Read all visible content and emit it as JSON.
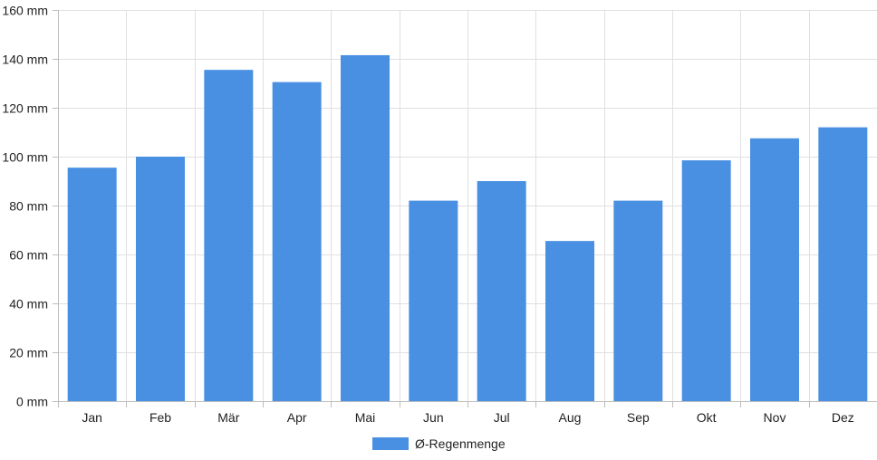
{
  "colors": {
    "bar": "#4a90e2",
    "grid": "#e0e0e0",
    "axis": "#bdbdbd",
    "text": "#222222"
  },
  "chart_data": {
    "type": "bar",
    "categories": [
      "Jan",
      "Feb",
      "Mär",
      "Apr",
      "Mai",
      "Jun",
      "Jul",
      "Aug",
      "Sep",
      "Okt",
      "Nov",
      "Dez"
    ],
    "series": [
      {
        "name": "Ø-Regenmenge",
        "values": [
          95.5,
          100,
          135.5,
          130.5,
          141.5,
          82,
          90,
          65.5,
          82,
          98.5,
          107.5,
          112
        ]
      }
    ],
    "ylim": [
      0,
      160
    ],
    "yticks": [
      0,
      20,
      40,
      60,
      80,
      100,
      120,
      140,
      160
    ],
    "y_unit": "mm",
    "grid": true,
    "legend_position": "bottom"
  }
}
